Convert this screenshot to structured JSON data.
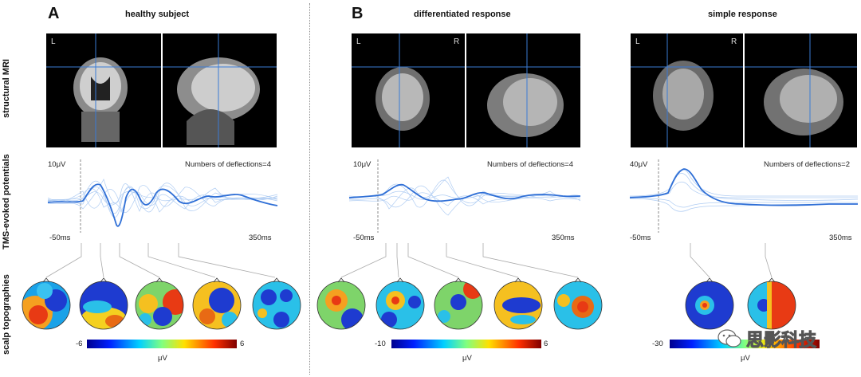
{
  "row_labels": {
    "mri": "structural MRI",
    "teps": "TMS-evoked potentials",
    "topo": "scalp topographies"
  },
  "panels": {
    "A": {
      "letter": "A",
      "title": "healthy subject"
    },
    "B": {
      "letter": "B",
      "title": "differentiated response"
    },
    "C": {
      "title": "simple response"
    }
  },
  "mri_labels": {
    "left": "L",
    "right": "R"
  },
  "teps": [
    {
      "scale": "10μV",
      "deflections": "Numbers of deflections=4",
      "start": "-50ms",
      "end": "350ms"
    },
    {
      "scale": "10μV",
      "deflections": "Numbers of deflections=4",
      "start": "-50ms",
      "end": "350ms"
    },
    {
      "scale": "40μV",
      "deflections": "Numbers of deflections=2",
      "start": "-50ms",
      "end": "350ms"
    }
  ],
  "colorbars": [
    {
      "min": "-6",
      "max": "6",
      "unit": "μV"
    },
    {
      "min": "-10",
      "max": "6",
      "unit": "μV"
    },
    {
      "min": "-30",
      "max": "",
      "unit": "μV"
    }
  ],
  "watermark": "思影科技",
  "colors": {
    "trace": "#2f6fd6",
    "trace_light": "#9cc0f0",
    "crosshair": "#3a7bd5"
  }
}
